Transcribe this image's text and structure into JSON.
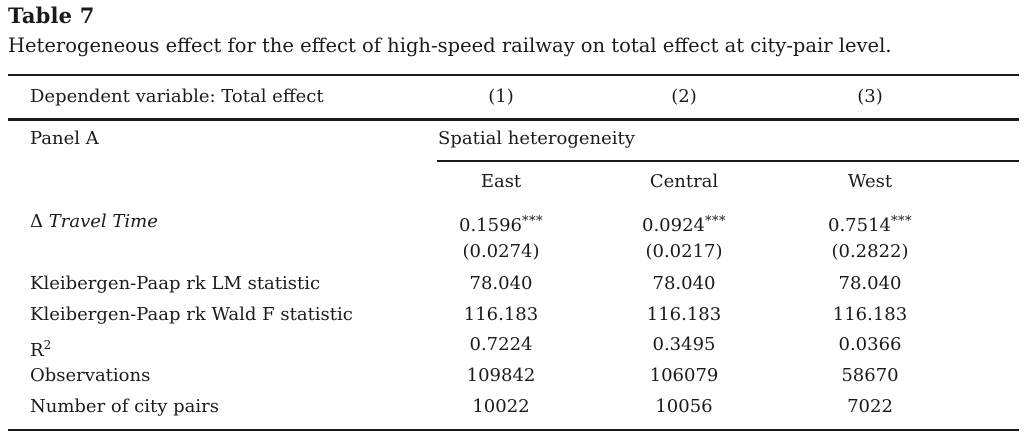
{
  "table": {
    "number": "Table 7",
    "caption": "Heterogeneous effect for the effect of high-speed railway on total effect at city-pair level.",
    "header": {
      "dependent_label": "Dependent variable: Total effect",
      "columns": [
        "(1)",
        "(2)",
        "(3)"
      ]
    },
    "panel": {
      "label": "Panel A",
      "heading": "Spatial heterogeneity",
      "regions": [
        "East",
        "Central",
        "West"
      ]
    },
    "rows": {
      "travel_time": {
        "delta": "Δ",
        "label": "Travel Time",
        "coefs": [
          "0.1596",
          "0.0924",
          "0.7514"
        ],
        "stars": [
          "***",
          "***",
          "***"
        ],
        "se": [
          "(0.0274)",
          "(0.0217)",
          "(0.2822)"
        ]
      },
      "lm": {
        "label": "Kleibergen-Paap rk LM statistic",
        "values": [
          "78.040",
          "78.040",
          "78.040"
        ]
      },
      "wald": {
        "label": "Kleibergen-Paap rk Wald F statistic",
        "values": [
          "116.183",
          "116.183",
          "116.183"
        ]
      },
      "r2": {
        "label": "R",
        "sup": "2",
        "values": [
          "0.7224",
          "0.3495",
          "0.0366"
        ]
      },
      "obs": {
        "label": "Observations",
        "values": [
          "109842",
          "106079",
          "58670"
        ]
      },
      "pairs": {
        "label": "Number of city pairs",
        "values": [
          "10022",
          "10056",
          "7022"
        ]
      }
    }
  }
}
